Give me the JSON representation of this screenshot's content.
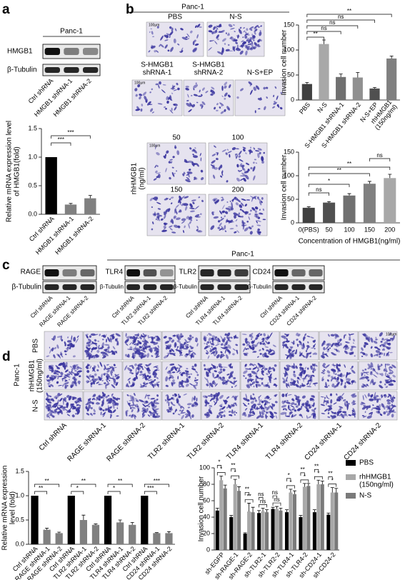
{
  "figure": {
    "panel_letters": [
      "a",
      "b",
      "c",
      "d"
    ],
    "a": {
      "cell_line": "Panc-1",
      "blot_labels": [
        "HMGB1",
        "β-Tubulin"
      ],
      "lanes": [
        "Ctrl shRNA",
        "HMGB1 shRNA-1",
        "HMGB1 shRNA-2"
      ]
    },
    "b": {
      "cell_line": "Panc-1",
      "scale_bar": "100μm",
      "images": [
        "PBS",
        "N-S",
        "S-HMGB1\nshRNA-1",
        "S-HMGB1\nshRNA-2",
        "N-S+EP"
      ],
      "dose_label": "rhHMGB1\n(ng/ml)",
      "doses": [
        "50",
        "100",
        "150",
        "200"
      ]
    },
    "c": {
      "cell_line": "Panc-1",
      "blots": [
        {
          "target": "RAGE",
          "loading": "β-Tubulin",
          "lanes": [
            "Ctrl shRNA",
            "RAGE shRNA-1",
            "RAGE shRNA-2"
          ]
        },
        {
          "target": "TLR4",
          "loading": "β-Tubulin",
          "lanes": [
            "Ctrl shRNA",
            "TLR2 shRNA-1",
            "TLR2 shRNA-2"
          ]
        },
        {
          "target": "TLR2",
          "loading": "β-Tubulin",
          "lanes": [
            "Ctrl shRNA",
            "TLR4 shRNA-1",
            "TLR4 shRNA-2"
          ]
        },
        {
          "target": "CD24",
          "loading": "β-Tubulin",
          "lanes": [
            "Ctrl shRNA",
            "CD24 shRNA-1",
            "CD24 shRNA-2"
          ]
        }
      ]
    },
    "d": {
      "cell_line": "Panc-1",
      "scale_bar": "100μm",
      "rows": [
        "PBS",
        "rhHMGB1\n(150ng/ml)",
        "N-S"
      ],
      "columns": [
        "Ctrl shRNA",
        "RAGE shRNA-1",
        "RAGE shRNA-2",
        "TLR2 shRNA-1",
        "TLR2 shRNA-2",
        "TLR4 shRNA-1",
        "TLR4 shRNA-2",
        "CD24 shRNA-1",
        "CD24 shRNA-2"
      ]
    }
  },
  "chart_data": [
    {
      "type": "bar",
      "ylabel": "Relative mRNA expression level\nof HMGB1(fold)",
      "categories": [
        "Ctrl shRNA",
        "HMGB1 shRNA-1",
        "HMGB1 shRNA-2"
      ],
      "values": [
        1,
        0.17,
        0.28
      ],
      "errors": [
        0,
        0.02,
        0.05
      ],
      "colors": [
        "#000000",
        "#808080",
        "#808080"
      ],
      "ylim": [
        0,
        1.5
      ],
      "yticks": [
        {
          "value": 0,
          "label": "0.0"
        },
        0.5,
        {
          "value": 1,
          "label": "1.0"
        },
        1.5
      ],
      "annotations": [
        "***",
        "***"
      ]
    },
    {
      "type": "bar",
      "ylabel": "Invasion cell number",
      "categories": [
        "PBS",
        "N-S",
        "S-HMGB1 shRNA-1",
        "S-HMGB1 shRNA-2",
        "N-S+EP",
        "rhHMGB1\n(150ng/ml)"
      ],
      "values": [
        32,
        112,
        46,
        45,
        23,
        83
      ],
      "errors": [
        3,
        8,
        6,
        10,
        2,
        5
      ],
      "colors": [
        "#404040",
        "#a8a8a8",
        "#707070",
        "#909090",
        "#505050",
        "#808080"
      ],
      "ylim": [
        0,
        150
      ],
      "yticks": [
        0,
        50,
        100,
        150
      ],
      "annotations": [
        "**",
        "ns",
        "ns",
        "ns",
        "**"
      ]
    },
    {
      "type": "bar",
      "ylabel": "Invasion cell number",
      "xlabel": "Concentration of HMGB1(ng/ml)",
      "categories": [
        "0(PBS)",
        "50",
        "100",
        "150",
        "200"
      ],
      "values": [
        32,
        43,
        58,
        83,
        95
      ],
      "errors": [
        2,
        2,
        4,
        5,
        8
      ],
      "colors": [
        "#404040",
        "#505050",
        "#707070",
        "#808080",
        "#a8a8a8"
      ],
      "ylim": [
        0,
        150
      ],
      "yticks": [
        0,
        50,
        100,
        150
      ],
      "annotations": [
        "ns",
        "*",
        "**",
        "**",
        "ns"
      ]
    },
    {
      "type": "bar",
      "ylabel": "Relative mRNA expression\nlevel (fold)",
      "categories": [
        "Ctrl shRNA",
        "RAGE shRNA-1",
        "RAGE shRNA-2",
        "Ctrl shRNA",
        "TLR2 shRNA-1",
        "TLR2 shRNA-2",
        "Ctrl shRNA",
        "TLR4 shRNA-1",
        "TLR4 shRNA-2",
        "Ctrl shRNA",
        "CD24 shRNA-1",
        "CD24 shRNA-2"
      ],
      "values": [
        1,
        0.3,
        0.23,
        1,
        0.5,
        0.4,
        1,
        0.45,
        0.4,
        1,
        0.23,
        0.23
      ],
      "errors": [
        0,
        0.03,
        0.02,
        0,
        0.1,
        0.02,
        0,
        0.05,
        0.05,
        0,
        0.01,
        0.03
      ],
      "colors": [
        "#000000",
        "#808080",
        "#808080",
        "#000000",
        "#808080",
        "#808080",
        "#000000",
        "#808080",
        "#808080",
        "#000000",
        "#808080",
        "#808080"
      ],
      "ylim": [
        0,
        1.5
      ],
      "yticks": [
        {
          "value": 0,
          "label": "0.0"
        },
        0.5,
        {
          "value": 1,
          "label": "1.0"
        },
        1.5
      ],
      "annotations": [
        "**",
        "**",
        "*",
        "**",
        "*",
        "**",
        "***",
        "***"
      ]
    },
    {
      "type": "grouped_bar",
      "ylabel": "Invasion cell number",
      "categories": [
        "sh-EGFP",
        "sh-RAGE-1",
        "sh-RAGE-2",
        "sh-TLR2-1",
        "sh-TLR2-2",
        "sh-TLR4-1",
        "sh-TLR4-2",
        "sh-CD24-1",
        "sh-CD24-2"
      ],
      "series": [
        {
          "name": "PBS",
          "color": "#000000",
          "values": [
            48,
            40,
            20,
            45,
            50,
            46,
            40,
            46,
            43
          ],
          "errors": [
            3,
            2,
            1,
            3,
            2,
            3,
            2,
            3,
            2
          ]
        },
        {
          "name": "rhHMGB1\n(150ng/ml)",
          "color": "#a8a8a8",
          "values": [
            85,
            80,
            47,
            47,
            50,
            70,
            77,
            80,
            70
          ],
          "errors": [
            5,
            6,
            10,
            4,
            3,
            4,
            4,
            5,
            6
          ]
        },
        {
          "name": "N-S",
          "color": "#7a7a7a",
          "values": [
            75,
            72,
            46,
            46,
            48,
            68,
            78,
            80,
            70
          ],
          "errors": [
            4,
            5,
            6,
            3,
            3,
            4,
            3,
            4,
            5
          ]
        }
      ],
      "ylim": [
        0,
        100
      ],
      "yticks": [
        0,
        20,
        40,
        60,
        80,
        100
      ],
      "annotations": [
        [
          "*",
          "*"
        ],
        [
          "**",
          "*"
        ],
        [
          "**",
          "**"
        ],
        [
          "ns",
          "ns"
        ],
        [
          "ns",
          "ns"
        ],
        [
          "*",
          "*"
        ],
        [
          "**",
          "*"
        ],
        [
          "**",
          "*"
        ],
        [
          "**",
          "*"
        ]
      ]
    }
  ]
}
